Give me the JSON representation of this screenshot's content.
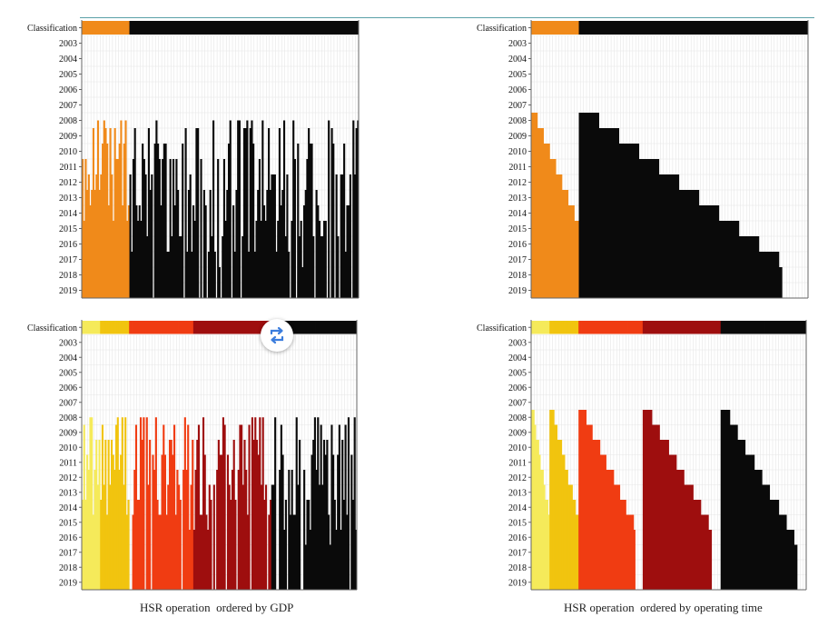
{
  "captions": {
    "left": "HSR operation  ordered by GDP",
    "right": "HSR operation  ordered by operating time"
  },
  "colors": {
    "orange": "#f08a1a",
    "black": "#0a0a0a",
    "yellow1": "#f5ea5a",
    "yellow2": "#f1c40f",
    "red": "#f03c12",
    "darkred": "#9e0e0e"
  },
  "swap_icon": "swap-arrows-icon",
  "chart_data": [
    {
      "type": "heatmap",
      "id": "top-left",
      "row_label": "Classification",
      "y": [
        "2003",
        "2004",
        "2005",
        "2006",
        "2007",
        "2008",
        "2009",
        "2010",
        "2011",
        "2012",
        "2013",
        "2014",
        "2015",
        "2016",
        "2017",
        "2018",
        "2019"
      ],
      "ncols": 180,
      "groups": [
        {
          "color": "orange",
          "count": 31
        },
        {
          "color": "black",
          "count": 149
        }
      ],
      "ordering": "gdp",
      "gridlines": true
    },
    {
      "type": "heatmap",
      "id": "top-right",
      "row_label": "Classification",
      "y": [
        "2003",
        "2004",
        "2005",
        "2006",
        "2007",
        "2008",
        "2009",
        "2010",
        "2011",
        "2012",
        "2013",
        "2014",
        "2015",
        "2016",
        "2017",
        "2018",
        "2019"
      ],
      "ncols": 180,
      "groups": [
        {
          "color": "orange",
          "count": 31
        },
        {
          "color": "black",
          "count": 149
        }
      ],
      "ordering": "operating_time",
      "gridlines": true
    },
    {
      "type": "heatmap",
      "id": "bottom-left",
      "row_label": "Classification",
      "y": [
        "2003",
        "2004",
        "2005",
        "2006",
        "2007",
        "2008",
        "2009",
        "2010",
        "2011",
        "2012",
        "2013",
        "2014",
        "2015",
        "2016",
        "2017",
        "2018",
        "2019"
      ],
      "ncols": 180,
      "groups": [
        {
          "color": "yellow1",
          "count": 12
        },
        {
          "color": "yellow2",
          "count": 19
        },
        {
          "color": "red",
          "count": 42
        },
        {
          "color": "darkred",
          "count": 51
        },
        {
          "color": "black",
          "count": 56
        }
      ],
      "ordering": "gdp",
      "gridlines": true
    },
    {
      "type": "heatmap",
      "id": "bottom-right",
      "row_label": "Classification",
      "y": [
        "2003",
        "2004",
        "2005",
        "2006",
        "2007",
        "2008",
        "2009",
        "2010",
        "2011",
        "2012",
        "2013",
        "2014",
        "2015",
        "2016",
        "2017",
        "2018",
        "2019"
      ],
      "ncols": 180,
      "groups": [
        {
          "color": "yellow1",
          "count": 12
        },
        {
          "color": "yellow2",
          "count": 19
        },
        {
          "color": "red",
          "count": 42
        },
        {
          "color": "darkred",
          "count": 51
        },
        {
          "color": "black",
          "count": 56
        }
      ],
      "ordering": "operating_time",
      "gridlines": true
    }
  ]
}
